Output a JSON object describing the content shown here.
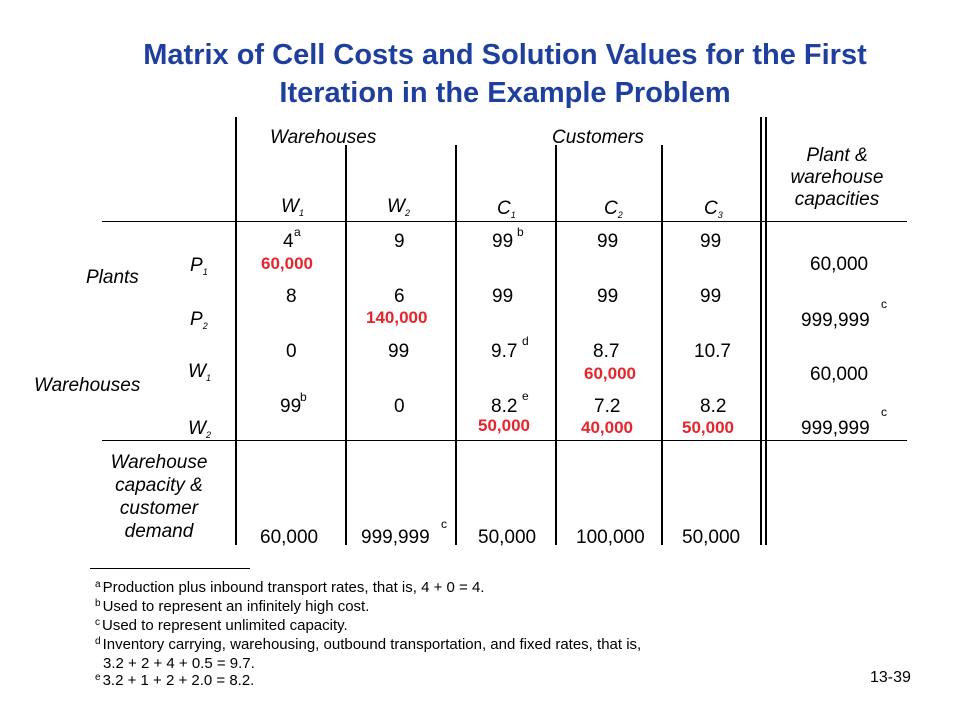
{
  "title": {
    "line1": "Matrix of Cell Costs and Solution Values for the First",
    "line2": "Iteration in the Example Problem"
  },
  "headers": {
    "warehouses": "Warehouses",
    "customers": "Customers",
    "capacities": [
      "Plant &",
      "warehouse",
      "capacities"
    ]
  },
  "columns": [
    {
      "letter": "W",
      "sub": "1"
    },
    {
      "letter": "W",
      "sub": "2"
    },
    {
      "letter": "C",
      "sub": "1"
    },
    {
      "letter": "C",
      "sub": "2"
    },
    {
      "letter": "C",
      "sub": "3"
    }
  ],
  "row_groups": {
    "plants": "Plants",
    "warehouses": "Warehouses"
  },
  "rows": [
    {
      "letter": "P",
      "sub": "1",
      "costs": [
        "4",
        "9",
        "99",
        "99",
        "99"
      ],
      "capacity": "60,000"
    },
    {
      "letter": "P",
      "sub": "2",
      "costs": [
        "8",
        "6",
        "99",
        "99",
        "99"
      ],
      "capacity": "999,999"
    },
    {
      "letter": "W",
      "sub": "1",
      "costs": [
        "0",
        "99",
        "9.7",
        "8.7",
        "10.7"
      ],
      "capacity": "60,000"
    },
    {
      "letter": "W",
      "sub": "2",
      "costs": [
        "99",
        "0",
        "8.2",
        "7.2",
        "8.2"
      ],
      "capacity": "999,999"
    }
  ],
  "solution_values": {
    "p1_w1": "60,000",
    "p2_w2": "140,000",
    "w1_c2": "60,000",
    "w2_c1": "50,000",
    "w2_c2": "40,000",
    "w2_c3": "50,000"
  },
  "markers": {
    "a": "a",
    "b": "b",
    "c": "c",
    "d": "d",
    "e": "e"
  },
  "demand": {
    "label": [
      "Warehouse",
      "capacity &",
      "customer",
      "demand"
    ],
    "values": [
      "60,000",
      "999,999",
      "50,000",
      "100,000",
      "50,000"
    ]
  },
  "footnotes": [
    {
      "mark": "a",
      "text": "Production plus inbound transport rates, that is, 4 + 0 = 4."
    },
    {
      "mark": "b",
      "text": "Used to represent an infinitely high cost."
    },
    {
      "mark": "c",
      "text": "Used to represent unlimited capacity."
    },
    {
      "mark": "d",
      "text": "Inventory carrying, warehousing, outbound transportation, and fixed rates, that is,"
    },
    {
      "mark": "",
      "text": "3.2 + 2 + 4 + 0.5 = 9.7."
    },
    {
      "mark": "e",
      "text": "3.2 + 1 + 2 + 2.0 = 8.2."
    }
  ],
  "slide_number": "13-39"
}
